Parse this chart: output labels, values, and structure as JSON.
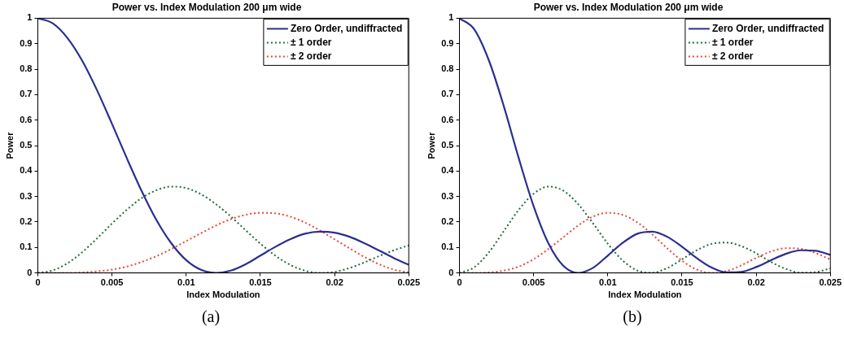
{
  "chart_data": [
    {
      "type": "line",
      "title": "Power vs. Index Modulation 200 μm wide",
      "xlabel": "Index Modulation",
      "ylabel": "Power",
      "annotations": [
        "(a)"
      ],
      "x": [
        0,
        0.001,
        0.002,
        0.003,
        0.004,
        0.005,
        0.006,
        0.007,
        0.008,
        0.009,
        0.01,
        0.011,
        0.012,
        0.013,
        0.014,
        0.015,
        0.016,
        0.017,
        0.018,
        0.019,
        0.02,
        0.021,
        0.022,
        0.023,
        0.024,
        0.025
      ],
      "series": [
        {
          "name": "Zero Order, undiffracted",
          "color": "#2b2f8f",
          "line_style": "solid",
          "values": [
            1,
            0.98,
            0.922,
            0.832,
            0.716,
            0.585,
            0.45,
            0.321,
            0.207,
            0.116,
            0.05,
            0.012,
            0,
            0.009,
            0.034,
            0.068,
            0.102,
            0.132,
            0.154,
            0.162,
            0.158,
            0.142,
            0.117,
            0.088,
            0.058,
            0.032
          ]
        },
        {
          "name": "± 1 order",
          "color": "#1f6b3a",
          "line_style": "dotted",
          "values": [
            0,
            0.01,
            0.038,
            0.082,
            0.136,
            0.194,
            0.248,
            0.294,
            0.325,
            0.339,
            0.333,
            0.309,
            0.27,
            0.222,
            0.168,
            0.115,
            0.068,
            0.032,
            0.009,
            0,
            0.004,
            0.019,
            0.041,
            0.066,
            0.089,
            0.108
          ]
        },
        {
          "name": "± 2 order",
          "color": "#e8483a",
          "line_style": "dotted",
          "values": [
            0,
            0,
            0,
            0.002,
            0.006,
            0.013,
            0.025,
            0.043,
            0.066,
            0.094,
            0.125,
            0.156,
            0.186,
            0.211,
            0.228,
            0.236,
            0.234,
            0.221,
            0.198,
            0.167,
            0.132,
            0.097,
            0.063,
            0.034,
            0.013,
            0.002
          ]
        }
      ],
      "xlim": [
        0,
        0.025
      ],
      "xticks": [
        0,
        0.005,
        0.01,
        0.015,
        0.02,
        0.025
      ],
      "ylim": [
        0,
        1
      ],
      "yticks": [
        0,
        0.1,
        0.2,
        0.3,
        0.4,
        0.5,
        0.6,
        0.7,
        0.8,
        0.9,
        1
      ],
      "grid": false,
      "legend": "top right",
      "marker": "none"
    },
    {
      "type": "line",
      "title": "Power vs. Index Modulation 200 μm wide",
      "xlabel": "Index Modulation",
      "ylabel": "Power",
      "annotations": [
        "(b)"
      ],
      "x": [
        0,
        0.001,
        0.002,
        0.003,
        0.004,
        0.005,
        0.006,
        0.007,
        0.008,
        0.009,
        0.01,
        0.011,
        0.012,
        0.013,
        0.014,
        0.015,
        0.016,
        0.017,
        0.018,
        0.019,
        0.02,
        0.021,
        0.022,
        0.023,
        0.024,
        0.025
      ],
      "series": [
        {
          "name": "Zero Order, undiffracted",
          "color": "#2b2f8f",
          "line_style": "solid",
          "values": [
            1,
            0.956,
            0.832,
            0.653,
            0.45,
            0.262,
            0.116,
            0.028,
            0,
            0.02,
            0.068,
            0.118,
            0.154,
            0.162,
            0.142,
            0.103,
            0.058,
            0.021,
            0.002,
            0.004,
            0.023,
            0.05,
            0.075,
            0.089,
            0.087,
            0.071
          ]
        },
        {
          "name": "± 1 order",
          "color": "#1f6b3a",
          "line_style": "dotted",
          "values": [
            0,
            0.022,
            0.082,
            0.165,
            0.248,
            0.311,
            0.339,
            0.323,
            0.27,
            0.195,
            0.115,
            0.049,
            0.009,
            0.001,
            0.019,
            0.053,
            0.089,
            0.114,
            0.119,
            0.105,
            0.077,
            0.043,
            0.016,
            0.001,
            0.003,
            0.018
          ]
        },
        {
          "name": "± 2 order",
          "color": "#e8483a",
          "line_style": "dotted",
          "values": [
            0,
            0,
            0.002,
            0.009,
            0.025,
            0.054,
            0.094,
            0.14,
            0.186,
            0.221,
            0.236,
            0.228,
            0.198,
            0.151,
            0.097,
            0.048,
            0.013,
            0,
            0.007,
            0.03,
            0.059,
            0.084,
            0.097,
            0.095,
            0.078,
            0.053
          ]
        }
      ],
      "xlim": [
        0,
        0.025
      ],
      "xticks": [
        0,
        0.005,
        0.01,
        0.015,
        0.02,
        0.025
      ],
      "ylim": [
        0,
        1
      ],
      "yticks": [
        0,
        0.1,
        0.2,
        0.3,
        0.4,
        0.5,
        0.6,
        0.7,
        0.8,
        0.9,
        1
      ],
      "grid": false,
      "legend": "top right",
      "marker": "none"
    }
  ]
}
